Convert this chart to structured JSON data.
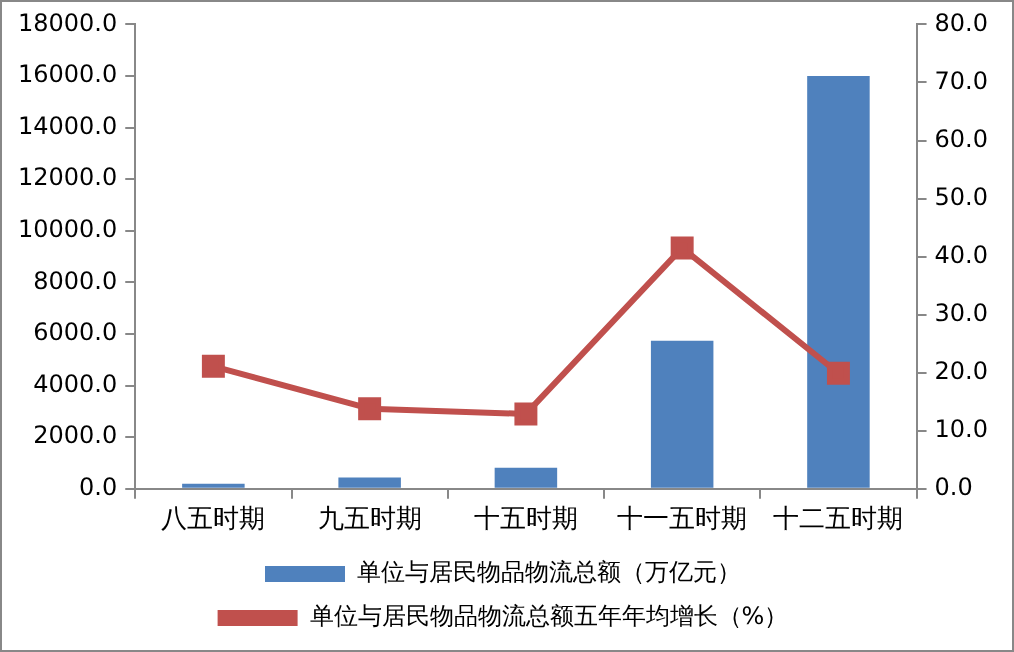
{
  "chart_data": {
    "type": "bar",
    "categories": [
      "八五时期",
      "九五时期",
      "十五时期",
      "十一五时期",
      "十二五时期"
    ],
    "series": [
      {
        "name": "单位与居民物品物流总额（万亿元）",
        "color": "#4f81bd",
        "values": [
          200,
          440,
          820,
          5740,
          16000
        ]
      },
      {
        "name": "单位与居民物品物流总额五年年均增长（%）",
        "color": "#c0504d",
        "type": "line",
        "axis": "y2",
        "values": [
          21.1,
          13.8,
          12.9,
          41.5,
          19.9
        ]
      }
    ],
    "ylim": [
      0,
      18000
    ],
    "yticks": [
      {
        "value": 0,
        "label": "0.0"
      },
      {
        "value": 2000,
        "label": "2000.0"
      },
      {
        "value": 4000,
        "label": "4000.0"
      },
      {
        "value": 6000,
        "label": "6000.0"
      },
      {
        "value": 8000,
        "label": "8000.0"
      },
      {
        "value": 10000,
        "label": "10000.0"
      },
      {
        "value": 12000,
        "label": "12000.0"
      },
      {
        "value": 14000,
        "label": "14000.0"
      },
      {
        "value": 16000,
        "label": "16000.0"
      },
      {
        "value": 18000,
        "label": "18000.0"
      }
    ],
    "y2lim": [
      0,
      80
    ],
    "y2ticks": [
      {
        "value": 0,
        "label": "0.0"
      },
      {
        "value": 10,
        "label": "10.0"
      },
      {
        "value": 20,
        "label": "20.0"
      },
      {
        "value": 30,
        "label": "30.0"
      },
      {
        "value": 40,
        "label": "40.0"
      },
      {
        "value": 50,
        "label": "50.0"
      },
      {
        "value": 60,
        "label": "60.0"
      },
      {
        "value": 70,
        "label": "70.0"
      },
      {
        "value": 80,
        "label": "80.0"
      }
    ],
    "grid": false,
    "legend": "bottom",
    "marker": "square"
  }
}
